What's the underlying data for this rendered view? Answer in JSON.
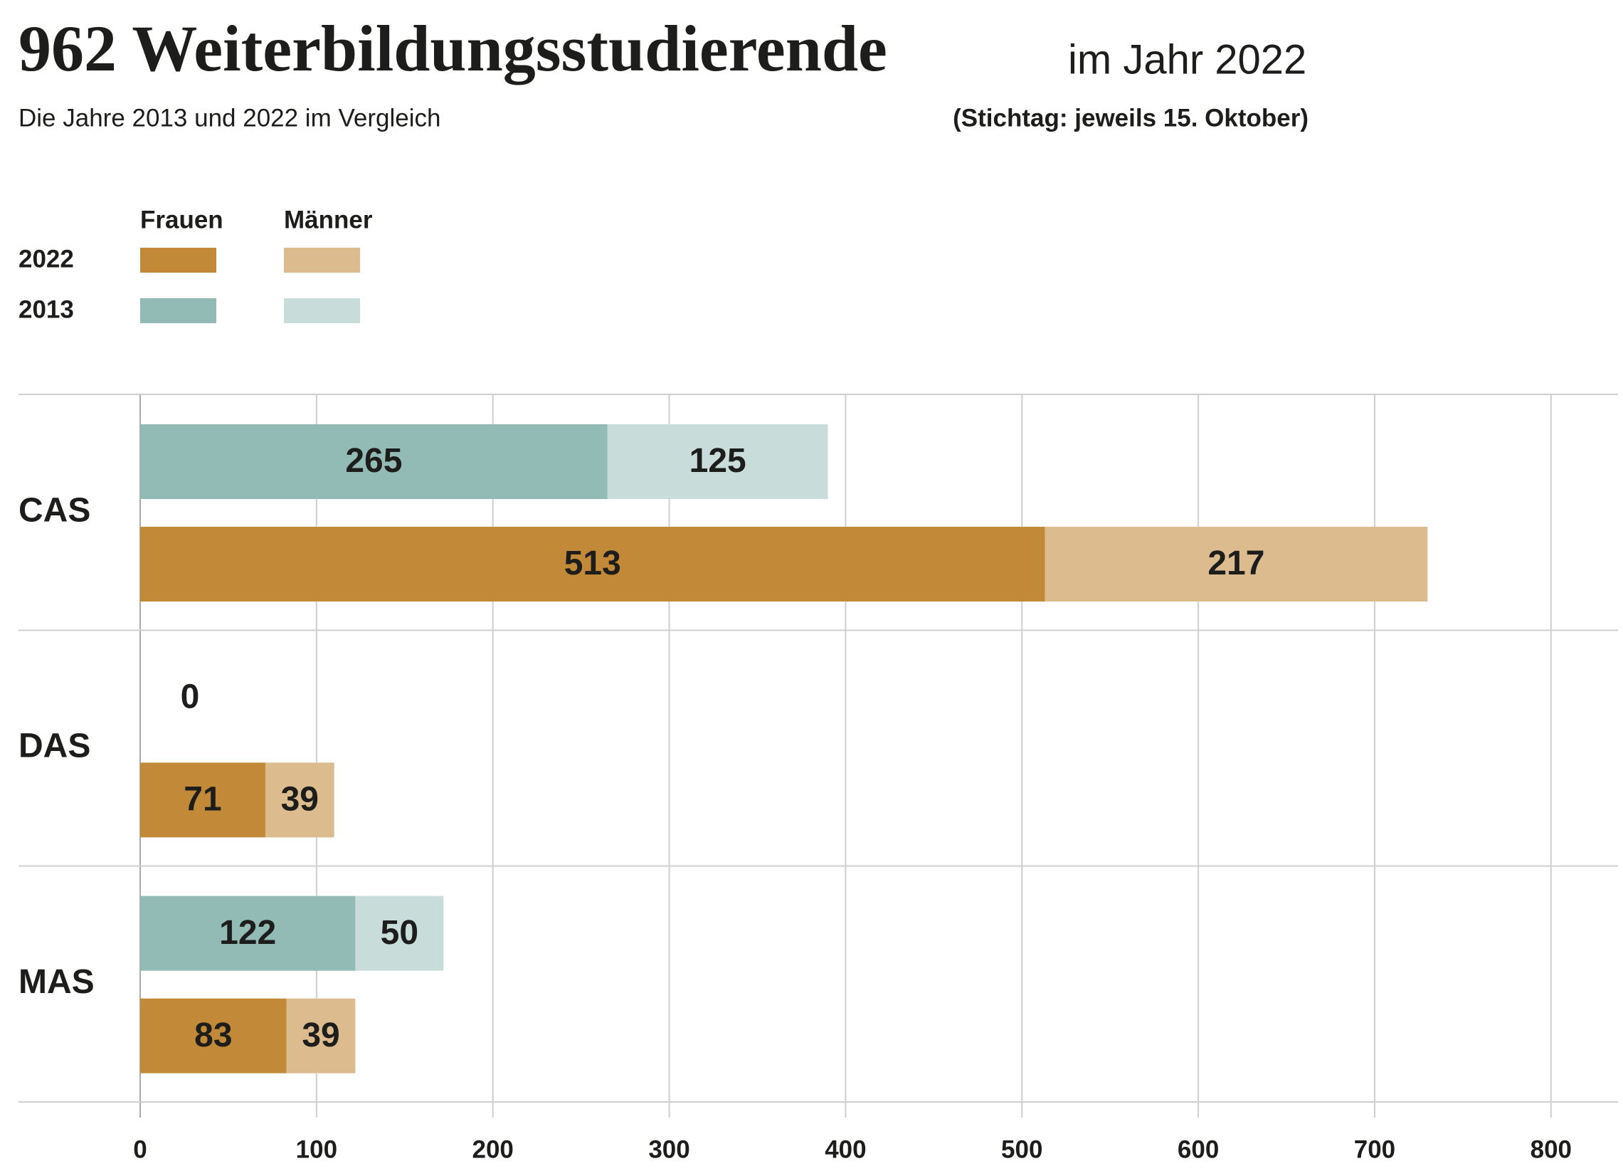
{
  "chart_data": {
    "type": "stacked-bar-horizontal",
    "title": "962 Weiterbildungsstudierende",
    "title_suffix": "im Jahr 2022",
    "subtitle": "Die Jahre 2013 und 2022 im Vergleich",
    "note": "(Stichtag: jeweils 15. Oktober)",
    "categories": [
      "CAS",
      "DAS",
      "MAS"
    ],
    "series": [
      {
        "name": "Frauen",
        "group": "2013",
        "color": "#93bbb6",
        "values": [
          265,
          0,
          122
        ]
      },
      {
        "name": "Männer",
        "group": "2013",
        "color": "#c8dcd9",
        "values": [
          125,
          0,
          50
        ],
        "value_labels": [
          "125",
          null,
          "50"
        ]
      },
      {
        "name": "Frauen",
        "group": "2022",
        "color": "#c28a38",
        "values": [
          513,
          71,
          83
        ]
      },
      {
        "name": "Männer",
        "group": "2022",
        "color": "#dcbb8f",
        "values": [
          217,
          39,
          39
        ]
      }
    ],
    "xlim": [
      0,
      838
    ],
    "xticks": [
      0,
      100,
      200,
      300,
      400,
      500,
      600,
      700,
      800
    ],
    "grid": true
  }
}
